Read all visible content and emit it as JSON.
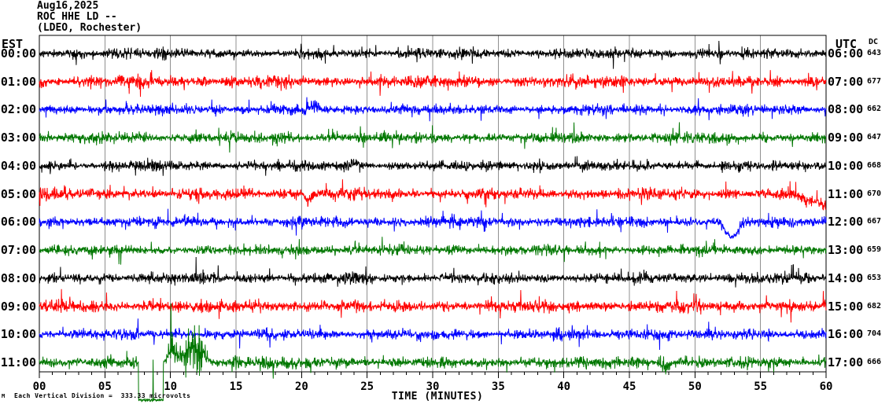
{
  "header": {
    "date": "Aug16,2025",
    "station": "ROC HHE LD --",
    "network": "(LDEO, Rochester)"
  },
  "columns": {
    "left_header": "EST",
    "right_header": "UTC",
    "dc_header": "DC"
  },
  "axis": {
    "title": "TIME (MINUTES)",
    "tick_labels": [
      "00",
      "05",
      "10",
      "15",
      "20",
      "25",
      "30",
      "35",
      "40",
      "45",
      "50",
      "55",
      "60"
    ],
    "minutes_min": 0,
    "minutes_max": 60,
    "major_step": 5,
    "minor_step": 1
  },
  "footer": {
    "scale_note": "Each Vertical Division =  333.33 microvolts",
    "watermark": "M"
  },
  "colors": {
    "background": "#ffffff",
    "grid": "#909090",
    "border": "#000000",
    "text": "#000000",
    "trace_cycle": [
      "#000000",
      "#ff0000",
      "#0000ff",
      "#007700"
    ]
  },
  "chart_data": {
    "type": "line",
    "subtype": "helicorder-seismogram",
    "title": "ROC HHE LD -- (LDEO, Rochester) Aug16,2025",
    "xlabel": "TIME (MINUTES)",
    "x_range": [
      0,
      60
    ],
    "minutes_per_line": 60,
    "grid": "vertical every 5 minutes",
    "vertical_division_microvolts": 333.33,
    "traces": [
      {
        "est": "00:00",
        "utc": "06:00",
        "dc": "643",
        "color": "#000000",
        "base_amp": 7.5,
        "seed": 11,
        "events": [
          {
            "type": "quiet",
            "start": 17.2,
            "end": 19.4,
            "level": 4.5
          },
          {
            "type": "amp",
            "start": 20.4,
            "end": 21.2,
            "peak": 10
          },
          {
            "type": "amp",
            "start": 2,
            "end": 3,
            "peak": 10
          },
          {
            "type": "amp",
            "start": 43,
            "end": 44,
            "peak": 10
          }
        ]
      },
      {
        "est": "01:00",
        "utc": "07:00",
        "dc": "677",
        "color": "#ff0000",
        "base_amp": 8.5,
        "seed": 22,
        "events": [
          {
            "type": "amp",
            "start": 3,
            "end": 4.2,
            "peak": 11
          },
          {
            "type": "amp",
            "start": 12,
            "end": 13,
            "peak": 11
          },
          {
            "type": "amp",
            "start": 33,
            "end": 34,
            "peak": 10
          },
          {
            "type": "amp",
            "start": 56,
            "end": 58,
            "peak": 10
          }
        ]
      },
      {
        "est": "02:00",
        "utc": "08:00",
        "dc": "662",
        "color": "#0000ff",
        "base_amp": 7.5,
        "seed": 33,
        "events": [
          {
            "type": "amp",
            "start": 20.1,
            "end": 21.7,
            "peak": 13,
            "bias": -4
          },
          {
            "type": "amp",
            "start": 30.6,
            "end": 31.4,
            "peak": 11
          },
          {
            "type": "amp",
            "start": 44,
            "end": 45,
            "peak": 10
          }
        ]
      },
      {
        "est": "03:00",
        "utc": "09:00",
        "dc": "647",
        "color": "#007700",
        "base_amp": 7.5,
        "seed": 44,
        "events": [
          {
            "type": "amp",
            "start": 11,
            "end": 12,
            "peak": 9
          },
          {
            "type": "amp",
            "start": 23.6,
            "end": 25.4,
            "peak": 10.5
          }
        ]
      },
      {
        "est": "04:00",
        "utc": "10:00",
        "dc": "668",
        "color": "#000000",
        "base_amp": 7,
        "seed": 55,
        "events": [
          {
            "type": "amp",
            "start": 17.2,
            "end": 19.3,
            "peak": 9.5
          },
          {
            "type": "amp",
            "start": 23.4,
            "end": 24.9,
            "peak": 9,
            "bias": -3
          },
          {
            "type": "quiet",
            "start": 25.1,
            "end": 26.6,
            "level": 4.5
          },
          {
            "type": "amp",
            "start": 30.7,
            "end": 31.4,
            "peak": 12
          },
          {
            "type": "amp",
            "start": 49.8,
            "end": 50.6,
            "peak": 10
          }
        ]
      },
      {
        "est": "05:00",
        "utc": "11:00",
        "dc": "670",
        "color": "#ff0000",
        "base_amp": 8,
        "seed": 66,
        "events": [
          {
            "type": "amp",
            "start": 19.9,
            "end": 21,
            "peak": 10
          },
          {
            "type": "offset",
            "start": 20,
            "end": 21,
            "peak": 8
          },
          {
            "type": "amp",
            "start": 26,
            "end": 27,
            "peak": 10
          },
          {
            "type": "amp",
            "start": 41.5,
            "end": 42.5,
            "peak": 10
          },
          {
            "type": "ramp",
            "start": 57.4,
            "end": 60,
            "peak": 16
          }
        ]
      },
      {
        "est": "06:00",
        "utc": "12:00",
        "dc": "667",
        "color": "#0000ff",
        "base_amp": 7.5,
        "seed": 77,
        "events": [
          {
            "type": "amp",
            "start": 44.3,
            "end": 48,
            "peak": 9.5
          },
          {
            "type": "offset",
            "start": 51.7,
            "end": 53.9,
            "peak": 19
          },
          {
            "type": "quiet",
            "start": 52.2,
            "end": 53.2,
            "level": 5
          },
          {
            "type": "amp",
            "start": 57,
            "end": 58,
            "peak": 9
          }
        ]
      },
      {
        "est": "07:00",
        "utc": "13:00",
        "dc": "659",
        "color": "#007700",
        "base_amp": 7.5,
        "seed": 88,
        "events": [
          {
            "type": "amp",
            "start": 0,
            "end": 2,
            "peak": 9
          },
          {
            "type": "amp",
            "start": 36,
            "end": 37,
            "peak": 9
          }
        ]
      },
      {
        "est": "08:00",
        "utc": "14:00",
        "dc": "653",
        "color": "#000000",
        "base_amp": 7.5,
        "seed": 99,
        "events": [
          {
            "type": "amp",
            "start": 7.7,
            "end": 9.3,
            "peak": 11
          },
          {
            "type": "amp",
            "start": 11.3,
            "end": 12.7,
            "peak": 13
          },
          {
            "type": "amp",
            "start": 23.6,
            "end": 26.4,
            "peak": 10
          },
          {
            "type": "amp",
            "start": 44.6,
            "end": 46.2,
            "peak": 10
          }
        ]
      },
      {
        "est": "09:00",
        "utc": "15:00",
        "dc": "682",
        "color": "#ff0000",
        "base_amp": 8.5,
        "seed": 111,
        "events": [
          {
            "type": "amp",
            "start": 10.1,
            "end": 11.1,
            "peak": 12
          },
          {
            "type": "amp",
            "start": 21,
            "end": 22.2,
            "peak": 10
          },
          {
            "type": "amp",
            "start": 47,
            "end": 48,
            "peak": 10
          }
        ]
      },
      {
        "est": "10:00",
        "utc": "16:00",
        "dc": "704",
        "color": "#0000ff",
        "base_amp": 7.5,
        "seed": 122,
        "events": [
          {
            "type": "amp",
            "start": 36.5,
            "end": 45,
            "peak": 12
          },
          {
            "type": "amp",
            "start": 43,
            "end": 50.5,
            "peak": 13
          },
          {
            "type": "amp",
            "start": 40.6,
            "end": 41.6,
            "peak": 19
          },
          {
            "type": "amp",
            "start": 45.5,
            "end": 47,
            "peak": 16
          },
          {
            "type": "amp",
            "start": 54.8,
            "end": 56.6,
            "peak": 11
          },
          {
            "type": "amp",
            "start": 29,
            "end": 30,
            "peak": 10
          }
        ]
      },
      {
        "est": "11:00",
        "utc": "17:00",
        "dc": "666",
        "color": "#007700",
        "base_amp": 7.5,
        "seed": 133,
        "events": [
          {
            "type": "clip",
            "start": 7.55,
            "end": 9.45,
            "level": 48
          },
          {
            "type": "amp",
            "start": 9.4,
            "end": 10.9,
            "peak": 36,
            "bias": -14
          },
          {
            "type": "amp",
            "start": 10.2,
            "end": 13.4,
            "peak": 40,
            "bias": -18
          },
          {
            "type": "amp",
            "start": 13,
            "end": 16.5,
            "peak": 12
          },
          {
            "type": "amp",
            "start": 15,
            "end": 20,
            "peak": 10
          },
          {
            "type": "amp",
            "start": 29.8,
            "end": 30.8,
            "peak": 9
          },
          {
            "type": "amp",
            "start": 43.4,
            "end": 44.6,
            "peak": 12
          },
          {
            "type": "amp",
            "start": 47,
            "end": 48.4,
            "peak": 20,
            "bias": 4
          },
          {
            "type": "amp",
            "start": 49.3,
            "end": 51.2,
            "peak": 13
          }
        ]
      }
    ]
  }
}
